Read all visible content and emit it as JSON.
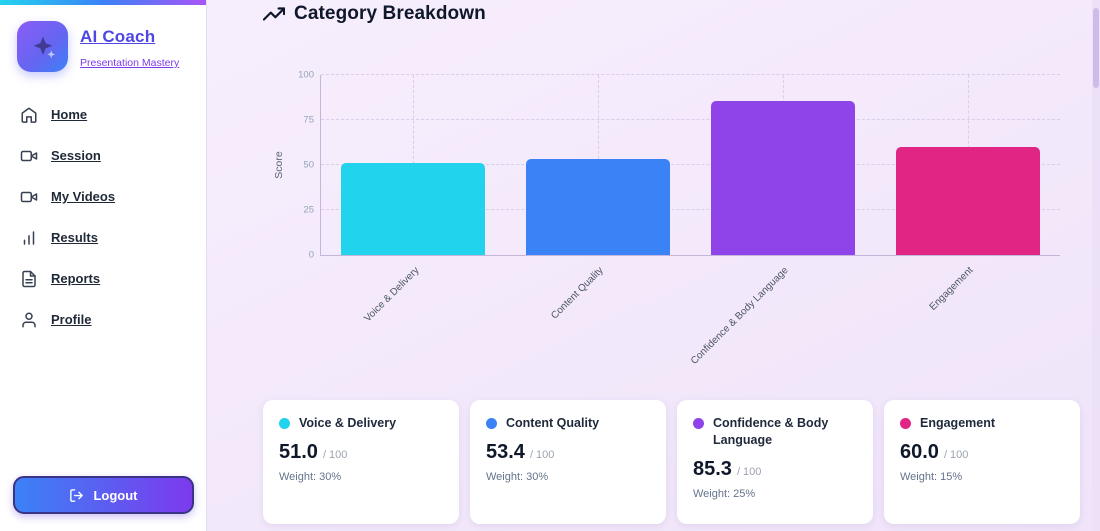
{
  "sidebar": {
    "brand": {
      "title": "AI Coach",
      "subtitle": "Presentation Mastery"
    },
    "items": [
      {
        "label": "Home",
        "icon": "home-icon"
      },
      {
        "label": "Session",
        "icon": "video-camera-icon"
      },
      {
        "label": "My Videos",
        "icon": "video-camera-icon"
      },
      {
        "label": "Results",
        "icon": "bar-chart-icon"
      },
      {
        "label": "Reports",
        "icon": "report-document-icon"
      },
      {
        "label": "Profile",
        "icon": "user-icon"
      }
    ],
    "logout": {
      "label": "Logout",
      "icon": "logout-icon"
    }
  },
  "main": {
    "header": {
      "title": "Category Breakdown",
      "icon": "trending-up-icon"
    }
  },
  "chart_data": {
    "type": "bar",
    "title": "Category Breakdown",
    "categories": [
      "Voice & Delivery",
      "Content Quality",
      "Confidence & Body Language",
      "Engagement"
    ],
    "values": [
      51.0,
      53.4,
      85.3,
      60.0
    ],
    "bar_colors": [
      "#22d3ee",
      "#3b82f6",
      "#8e44e9",
      "#e02585"
    ],
    "xlabel": "",
    "ylabel": "Score",
    "ylim": [
      0,
      100
    ],
    "yticks": [
      0,
      25,
      50,
      75,
      100
    ],
    "grid": "dashed",
    "legend": "none"
  },
  "cards": [
    {
      "name": "Voice & Delivery",
      "score": "51.0",
      "max": "/ 100",
      "weight": "Weight: 30%",
      "color": "#22d3ee"
    },
    {
      "name": "Content Quality",
      "score": "53.4",
      "max": "/ 100",
      "weight": "Weight: 30%",
      "color": "#3b82f6"
    },
    {
      "name": "Confidence & Body Language",
      "score": "85.3",
      "max": "/ 100",
      "weight": "Weight: 25%",
      "color": "#8e44e9"
    },
    {
      "name": "Engagement",
      "score": "60.0",
      "max": "/ 100",
      "weight": "Weight: 15%",
      "color": "#e02585"
    }
  ]
}
